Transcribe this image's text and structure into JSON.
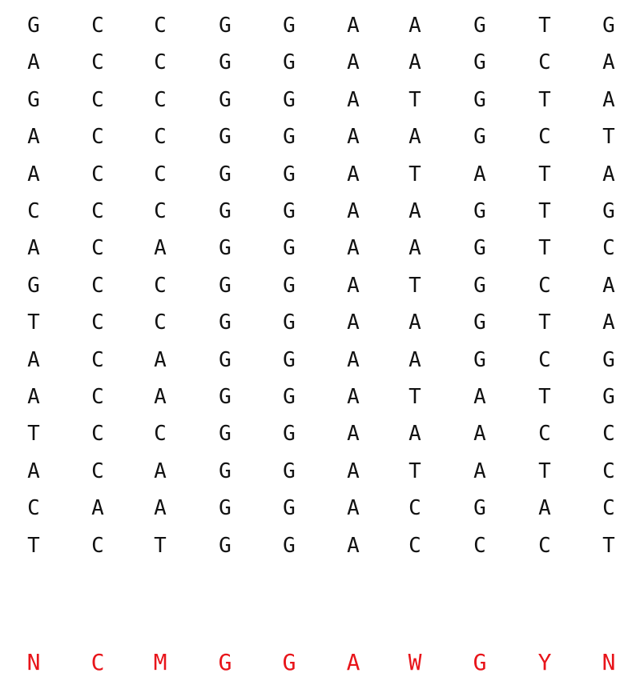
{
  "sequences": [
    [
      "G",
      "C",
      "C",
      "G",
      "G",
      "A",
      "A",
      "G",
      "T",
      "G"
    ],
    [
      "A",
      "C",
      "C",
      "G",
      "G",
      "A",
      "A",
      "G",
      "C",
      "A"
    ],
    [
      "G",
      "C",
      "C",
      "G",
      "G",
      "A",
      "T",
      "G",
      "T",
      "A"
    ],
    [
      "A",
      "C",
      "C",
      "G",
      "G",
      "A",
      "A",
      "G",
      "C",
      "T"
    ],
    [
      "A",
      "C",
      "C",
      "G",
      "G",
      "A",
      "T",
      "A",
      "T",
      "A"
    ],
    [
      "C",
      "C",
      "C",
      "G",
      "G",
      "A",
      "A",
      "G",
      "T",
      "G"
    ],
    [
      "A",
      "C",
      "A",
      "G",
      "G",
      "A",
      "A",
      "G",
      "T",
      "C"
    ],
    [
      "G",
      "C",
      "C",
      "G",
      "G",
      "A",
      "T",
      "G",
      "C",
      "A"
    ],
    [
      "T",
      "C",
      "C",
      "G",
      "G",
      "A",
      "A",
      "G",
      "T",
      "A"
    ],
    [
      "A",
      "C",
      "A",
      "G",
      "G",
      "A",
      "A",
      "G",
      "C",
      "G"
    ],
    [
      "A",
      "C",
      "A",
      "G",
      "G",
      "A",
      "T",
      "A",
      "T",
      "G"
    ],
    [
      "T",
      "C",
      "C",
      "G",
      "G",
      "A",
      "A",
      "A",
      "C",
      "C"
    ],
    [
      "A",
      "C",
      "A",
      "G",
      "G",
      "A",
      "T",
      "A",
      "T",
      "C"
    ],
    [
      "C",
      "A",
      "A",
      "G",
      "G",
      "A",
      "C",
      "G",
      "A",
      "C"
    ],
    [
      "T",
      "C",
      "T",
      "G",
      "G",
      "A",
      "C",
      "C",
      "C",
      "T"
    ]
  ],
  "consensus": [
    "N",
    "C",
    "M",
    "G",
    "G",
    "A",
    "W",
    "G",
    "Y",
    "N"
  ],
  "colors": {
    "sequence_text": "#111111",
    "consensus_text": "#e8141a",
    "background": "#ffffff"
  }
}
